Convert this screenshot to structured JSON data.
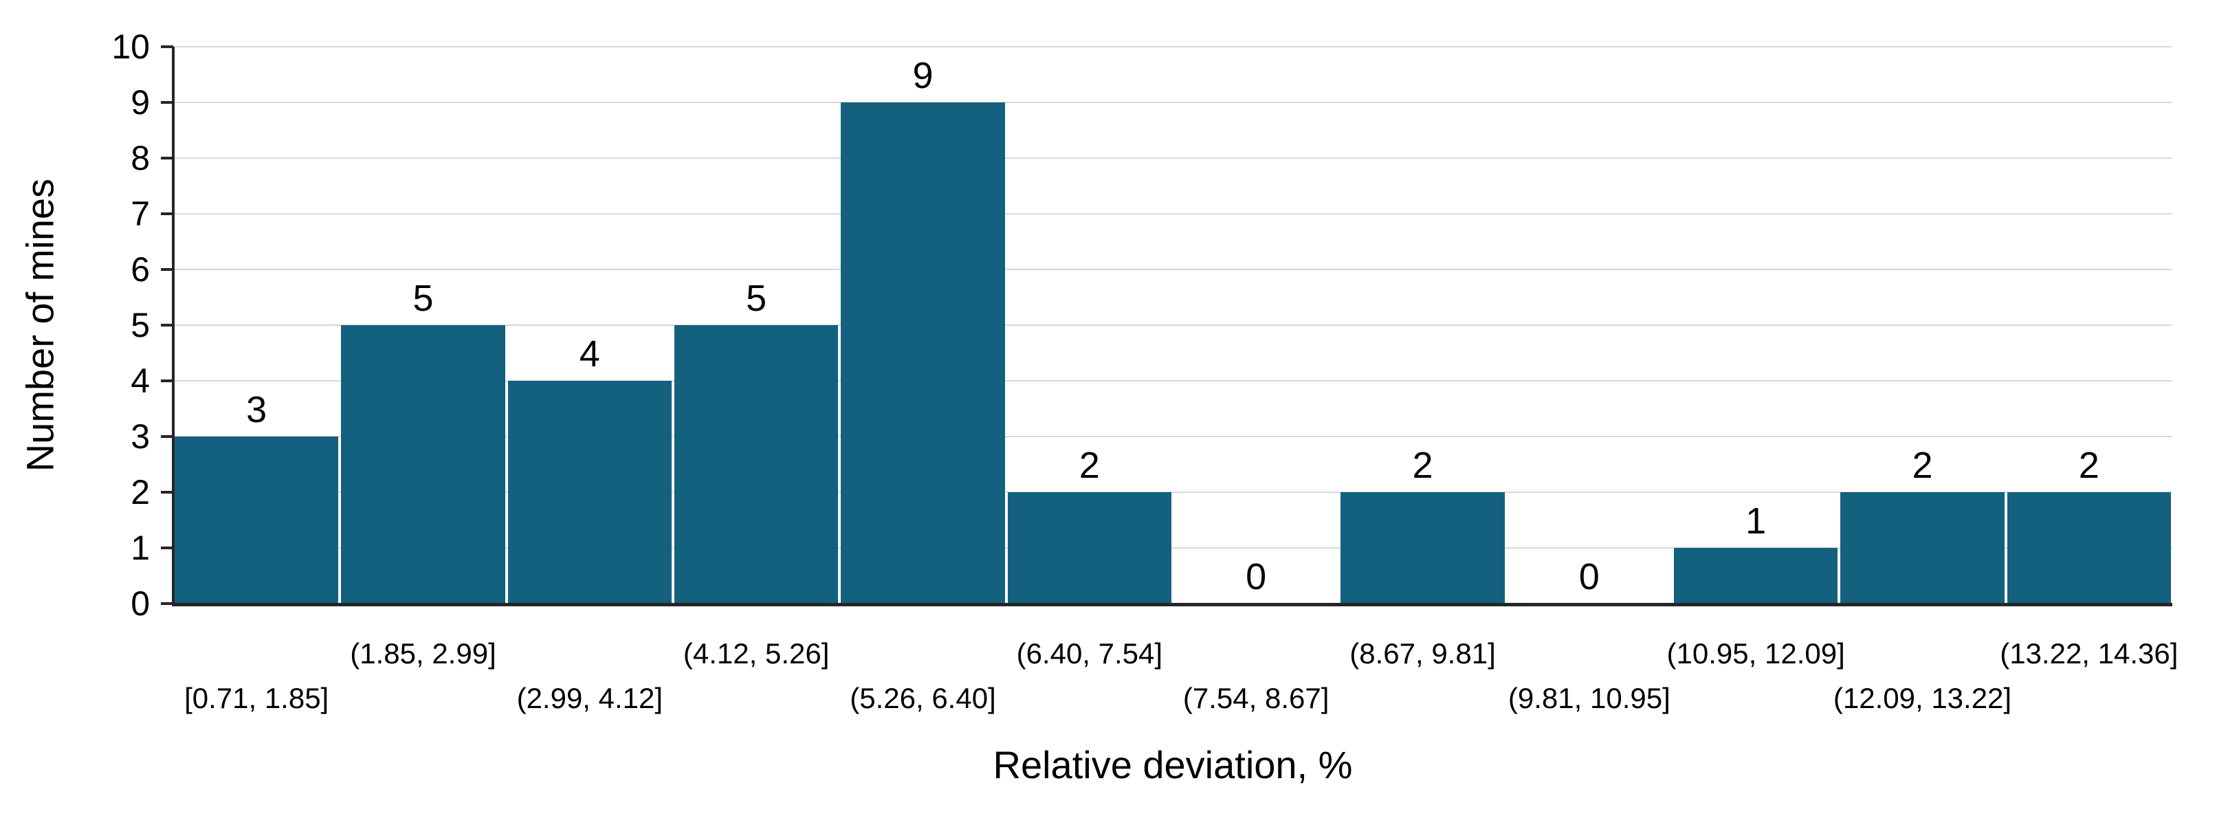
{
  "chart_data": {
    "type": "bar",
    "subtype": "histogram",
    "title": "",
    "xlabel": "Relative deviation, %",
    "ylabel": "Number of mines",
    "categories": [
      "[0.71, 1.85]",
      "(1.85, 2.99]",
      "(2.99, 4.12]",
      "(4.12, 5.26]",
      "(5.26, 6.40]",
      "(6.40, 7.54]",
      "(7.54, 8.67]",
      "(8.67, 9.81]",
      "(9.81, 10.95]",
      "(10.95, 12.09]",
      "(12.09, 13.22]",
      "(13.22, 14.36]"
    ],
    "values": [
      3,
      5,
      4,
      5,
      9,
      2,
      0,
      2,
      0,
      1,
      2,
      2
    ],
    "ylim": [
      0,
      10
    ],
    "yticks": [
      0,
      1,
      2,
      3,
      4,
      5,
      6,
      7,
      8,
      9,
      10
    ],
    "grid": "horizontal",
    "legend": "none",
    "data_labels": true,
    "xtick_layout": "staggered-two-rows",
    "colors": {
      "bar": "#14607F",
      "bar_separator": "#ffffff",
      "gridline": "#d9d9d9",
      "axis": "#262626",
      "text": "#000000"
    }
  }
}
